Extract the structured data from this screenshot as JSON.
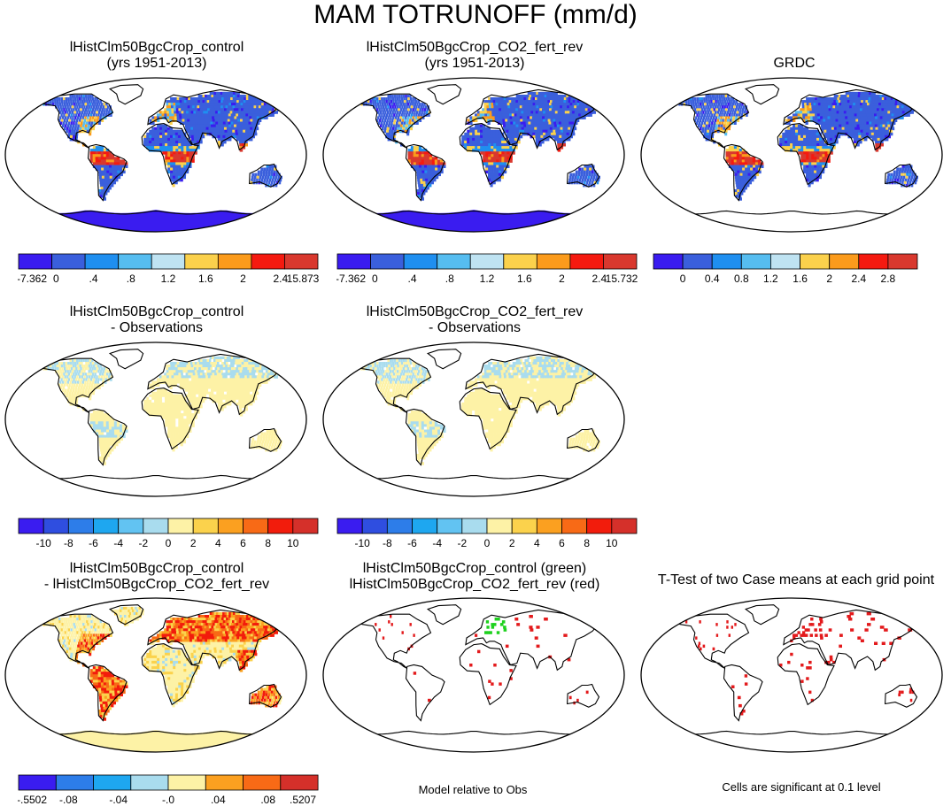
{
  "title": "MAM TOTRUNOFF (mm/d)",
  "palettes": {
    "runoff": [
      "#3a1cf0",
      "#3a5fdc",
      "#1f8ff0",
      "#56bdf0",
      "#bfe3f2",
      "#fbd14c",
      "#fb9b1c",
      "#f51a10",
      "#d9382e"
    ],
    "diff": [
      "#3a1cf0",
      "#2f4ee0",
      "#2d7de9",
      "#1ea7f0",
      "#62c3f2",
      "#a9dcee",
      "#fdf2a6",
      "#fbd24c",
      "#fba020",
      "#f86a16",
      "#f21c0c",
      "#d5302a"
    ],
    "diff2": [
      "#3a1cf0",
      "#2f4ee0",
      "#2d7de9",
      "#1ea7f0",
      "#62c3f2",
      "#a9dcee",
      "#fdf2a6",
      "#fbd24c",
      "#fba020",
      "#f86a16",
      "#f21c0c",
      "#d5302a"
    ]
  },
  "panels": [
    {
      "id": "p1",
      "title": [
        "lHistClm50BgcCrop_control",
        "(yrs 1951-2013)"
      ],
      "style": "runoff",
      "antarctica": "blue"
    },
    {
      "id": "p2",
      "title": [
        "lHistClm50BgcCrop_CO2_fert_rev",
        "(yrs 1951-2013)"
      ],
      "style": "runoff",
      "antarctica": "blue"
    },
    {
      "id": "p3",
      "title": [
        "GRDC"
      ],
      "style": "runoff",
      "antarctica": "none"
    },
    {
      "id": "p4",
      "title": [
        "lHistClm50BgcCrop_control",
        "- Observations"
      ],
      "style": "bias",
      "antarctica": "none"
    },
    {
      "id": "p5",
      "title": [
        "lHistClm50BgcCrop_CO2_fert_rev",
        "- Observations"
      ],
      "style": "bias",
      "antarctica": "none"
    },
    {
      "id": "p7",
      "title": [
        "lHistClm50BgcCrop_control",
        "- lHistClm50BgcCrop_CO2_fert_rev"
      ],
      "style": "diff",
      "antarctica": "yellow"
    },
    {
      "id": "p8",
      "title": [
        "lHistClm50BgcCrop_control (green)",
        "lHistClm50BgcCrop_CO2_fert_rev (red)"
      ],
      "style": "sig2",
      "antarctica": "none"
    },
    {
      "id": "p9",
      "title": [
        "T-Test of two Case means at each grid point"
      ],
      "style": "sig",
      "antarctica": "none"
    }
  ],
  "colorbars": [
    {
      "id": "cb1",
      "labels": [
        "-7.362",
        "0",
        ".4",
        ".8",
        "1.2",
        "1.6",
        "2",
        "2.4",
        "15.873"
      ],
      "palette": "runoff"
    },
    {
      "id": "cb2",
      "labels": [
        "-7.362",
        "0",
        ".4",
        ".8",
        "1.2",
        "1.6",
        "2",
        "2.4",
        "15.732"
      ],
      "palette": "runoff"
    },
    {
      "id": "cb3",
      "labels": [
        "0",
        "0.4",
        "0.8",
        "1.2",
        "1.6",
        "2",
        "2.4",
        "2.8"
      ],
      "palette": "runoff"
    },
    {
      "id": "cb4",
      "labels": [
        "-10",
        "-8",
        "-6",
        "-4",
        "-2",
        "0",
        "2",
        "4",
        "6",
        "8",
        "10"
      ],
      "palette": "diff"
    },
    {
      "id": "cb5",
      "labels": [
        "-10",
        "-8",
        "-6",
        "-4",
        "-2",
        "0",
        "2",
        "4",
        "6",
        "8",
        "10"
      ],
      "palette": "diff"
    },
    {
      "id": "cb7",
      "labels": [
        "-.5502",
        "-.08",
        "-.04",
        "-.0",
        ".04",
        ".08",
        ".5207"
      ],
      "palette": "diff2"
    }
  ],
  "notes": {
    "model_relative": "Model relative to Obs",
    "cells_significant": "Cells are significant at 0.1 level"
  },
  "chart_data": [
    {
      "type": "heatmap",
      "title": "lHistClm50BgcCrop_control (yrs 1951-2013)",
      "colorbar_labels": [
        "-7.362",
        "0",
        ".4",
        ".8",
        "1.2",
        "1.6",
        "2",
        "2.4",
        "15.873"
      ],
      "colorbar_range": [
        -7.362,
        15.873
      ]
    },
    {
      "type": "heatmap",
      "title": "lHistClm50BgcCrop_CO2_fert_rev (yrs 1951-2013)",
      "colorbar_labels": [
        "-7.362",
        "0",
        ".4",
        ".8",
        "1.2",
        "1.6",
        "2",
        "2.4",
        "15.732"
      ],
      "colorbar_range": [
        -7.362,
        15.732
      ]
    },
    {
      "type": "heatmap",
      "title": "GRDC",
      "colorbar_labels": [
        "0",
        "0.4",
        "0.8",
        "1.2",
        "1.6",
        "2",
        "2.4",
        "2.8"
      ]
    },
    {
      "type": "heatmap",
      "title": "lHistClm50BgcCrop_control - Observations",
      "colorbar_labels": [
        "-10",
        "-8",
        "-6",
        "-4",
        "-2",
        "0",
        "2",
        "4",
        "6",
        "8",
        "10"
      ]
    },
    {
      "type": "heatmap",
      "title": "lHistClm50BgcCrop_CO2_fert_rev - Observations",
      "colorbar_labels": [
        "-10",
        "-8",
        "-6",
        "-4",
        "-2",
        "0",
        "2",
        "4",
        "6",
        "8",
        "10"
      ]
    },
    {
      "type": "heatmap",
      "title": "lHistClm50BgcCrop_control - lHistClm50BgcCrop_CO2_fert_rev",
      "colorbar_labels": [
        "-.5502",
        "-.08",
        "-.04",
        "-.0",
        ".04",
        ".08",
        ".5207"
      ],
      "colorbar_range": [
        -0.5502,
        0.5207
      ]
    },
    {
      "type": "heatmap",
      "title": "lHistClm50BgcCrop_control (green) lHistClm50BgcCrop_CO2_fert_rev (red)",
      "note": "Model relative to Obs"
    },
    {
      "type": "heatmap",
      "title": "T-Test of two Case means at each grid point",
      "note": "Cells are significant at 0.1 level"
    }
  ]
}
